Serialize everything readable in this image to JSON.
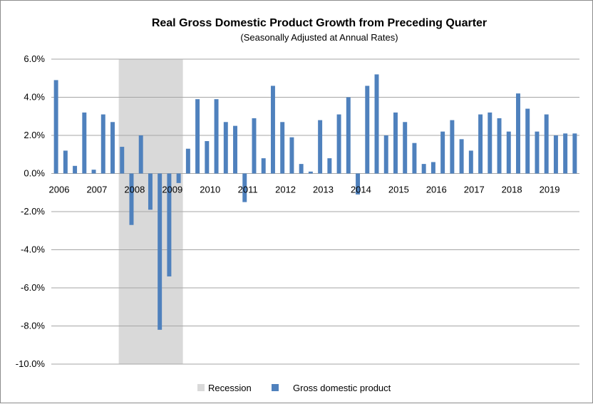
{
  "chart_data": {
    "type": "bar",
    "title": "Real  Gross Domestic Product Growth from Preceding Quarter",
    "subtitle": "(Seasonally Adjusted at Annual Rates)",
    "xlabel": "",
    "ylabel": "",
    "ylim": [
      -10,
      6
    ],
    "y_ticks": [
      "6.0%",
      "4.0%",
      "2.0%",
      "0.0%",
      "-2.0%",
      "-4.0%",
      "-6.0%",
      "-8.0%",
      "-10.0%"
    ],
    "y_tick_values": [
      6,
      4,
      2,
      0,
      -2,
      -4,
      -6,
      -8,
      -10
    ],
    "year_labels": [
      "2006",
      "2007",
      "2008",
      "2009",
      "2010",
      "2011",
      "2012",
      "2013",
      "2014",
      "2015",
      "2016",
      "2017",
      "2018",
      "2019"
    ],
    "grid": true,
    "legend_position": "bottom",
    "recession": {
      "name": "Recession",
      "start_quarter_index": 7,
      "end_quarter_index": 13,
      "color": "#d9d9d9"
    },
    "series": [
      {
        "name": "Gross domestic product",
        "color": "#4f81bd",
        "values": [
          4.9,
          1.2,
          0.4,
          3.2,
          0.2,
          3.1,
          2.7,
          1.4,
          -2.7,
          2.0,
          -1.9,
          -8.2,
          -5.4,
          -0.5,
          1.3,
          3.9,
          1.7,
          3.9,
          2.7,
          2.5,
          -1.5,
          2.9,
          0.8,
          4.6,
          2.7,
          1.9,
          0.5,
          0.1,
          2.8,
          0.8,
          3.1,
          4.0,
          -1.1,
          4.6,
          5.2,
          2.0,
          3.2,
          2.7,
          1.6,
          0.5,
          0.6,
          2.2,
          2.8,
          1.8,
          1.2,
          3.1,
          3.2,
          2.9,
          2.2,
          4.2,
          3.4,
          2.2,
          3.1,
          2.0,
          2.1,
          2.1
        ]
      }
    ]
  }
}
